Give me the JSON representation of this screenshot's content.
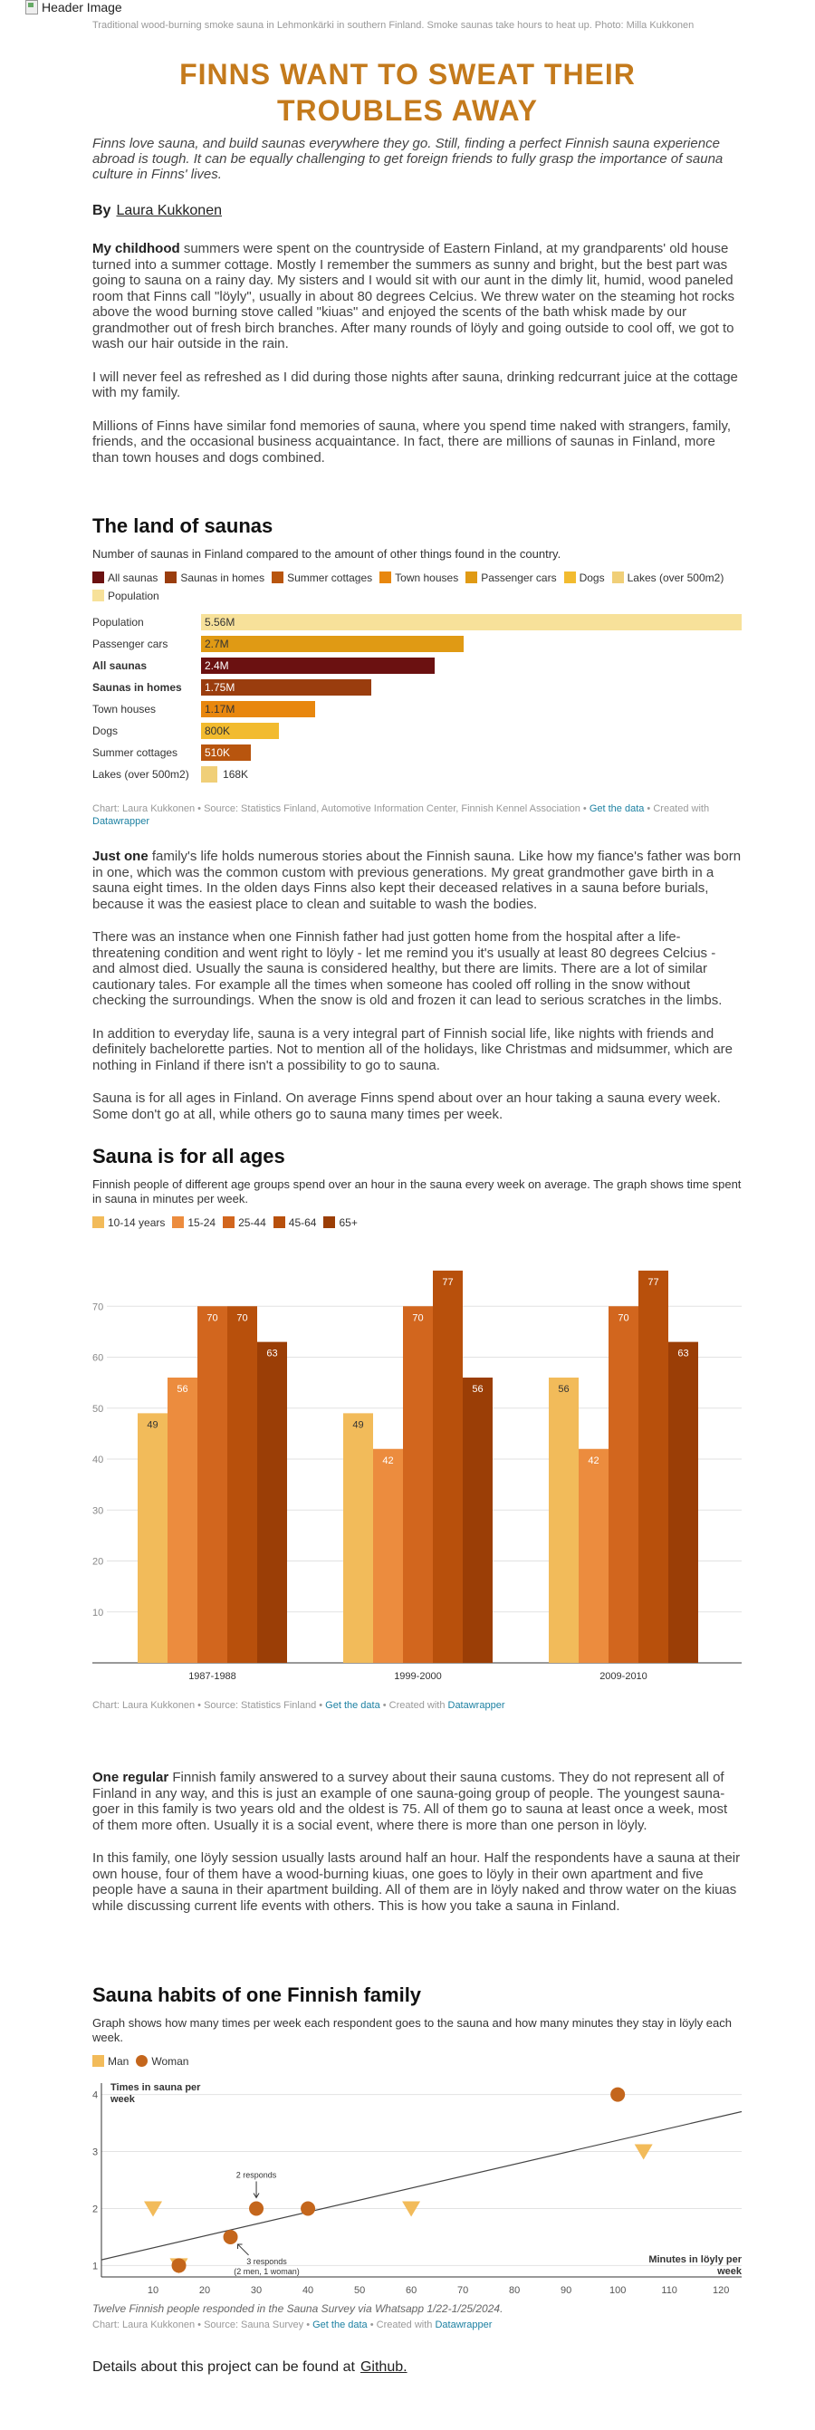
{
  "header": {
    "image_alt": "Header Image",
    "caption": "Traditional wood-burning smoke sauna in Lehmonkärki in southern Finland. Smoke saunas take hours to heat up. Photo: Milla Kukkonen"
  },
  "article": {
    "title": "Finns want to sweat their troubles away",
    "lede": "Finns love sauna, and build saunas everywhere they go. Still, finding a perfect Finnish sauna experience abroad is tough. It can be equally challenging to get foreign friends to fully grasp the importance of sauna culture in Finns' lives.",
    "by_label": "By",
    "author": "Laura Kukkonen",
    "section1": [
      {
        "lead": "My childhood",
        "text": " summers were spent on the countryside of Eastern Finland, at my grandparents' old house turned into a summer cottage. Mostly I remember the summers as sunny and bright, but the best part was going to sauna on a rainy day. My sisters and I would sit with our aunt in the dimly lit, humid, wood paneled room that Finns call \"löyly\", usually in about 80 degrees Celcius. We threw water on the steaming hot rocks above the wood burning stove called \"kiuas\" and enjoyed the scents of the bath whisk made by our grandmother out of fresh birch branches. After many rounds of löyly and going outside to cool off, we got to wash our hair outside in the rain."
      },
      {
        "lead": "",
        "text": "I will never feel as refreshed as I did during those nights after sauna, drinking redcurrant juice at the cottage with my family."
      },
      {
        "lead": "",
        "text": "Millions of Finns have similar fond memories of sauna, where you spend time naked with strangers, family, friends, and the occasional business acquaintance. In fact, there are millions of saunas in Finland, more than town houses and dogs combined."
      }
    ],
    "section2": [
      {
        "lead": "Just one",
        "text": " family's life holds numerous stories about the Finnish sauna. Like how my fiance's father was born in one, which was the common custom with previous generations. My great grandmother gave birth in a sauna eight times. In the olden days Finns also kept their deceased relatives in a sauna before burials, because it was the easiest place to clean and suitable to wash the bodies."
      },
      {
        "lead": "",
        "text": "There was an instance when one Finnish father had just gotten home from the hospital after a life-threatening condition and went right to löyly - let me remind you it's usually at least 80 degrees Celcius - and almost died. Usually the sauna is considered healthy, but there are limits. There are a lot of similar cautionary tales. For example all the times when someone has cooled off rolling in the snow without checking the surroundings. When the snow is old and frozen it can lead to serious scratches in the limbs."
      },
      {
        "lead": "",
        "text": "In addition to everyday life, sauna is a very integral part of Finnish social life, like nights with friends and definitely bachelorette parties. Not to mention all of the holidays, like Christmas and midsummer, which are nothing in Finland if there isn't a possibility to go to sauna."
      },
      {
        "lead": "",
        "text": "Sauna is for all ages in Finland. On average Finns spend about over an hour taking a sauna every week. Some don't go at all, while others go to sauna many times per week."
      }
    ],
    "section3": [
      {
        "lead": "One regular",
        "text": " Finnish family answered to a survey about their sauna customs. They do not represent all of Finland in any way, and this is just an example of one sauna-going group of people. The youngest sauna-goer in this family is two years old and the oldest is 75. All of them go to sauna at least once a week, most of them more often. Usually it is a social event, where there is more than one person in löyly."
      },
      {
        "lead": "",
        "text": "In this family, one löyly session usually lasts around half an hour. Half the respondents have a sauna at their own house, four of them have a wood-burning kiuas, one goes to löyly in their own apartment and five people have a sauna in their apartment building. All of them are in löyly naked and throw water on the kiuas while discussing current life events with others. This is how you take a sauna in Finland."
      }
    ],
    "footer": {
      "text": "Details about this project can be found at",
      "link": "Github."
    }
  },
  "chart_data": [
    {
      "type": "bar",
      "orientation": "horizontal",
      "title": "The land of saunas",
      "subtitle": "Number of saunas in Finland compared to the amount of other things found in the country.",
      "legend": [
        "All saunas",
        "Saunas in homes",
        "Summer cottages",
        "Town houses",
        "Passenger cars",
        "Dogs",
        "Lakes (over 500m2)",
        "Population"
      ],
      "colors": {
        "All saunas": "#6b1111",
        "Saunas in homes": "#9a3d0e",
        "Summer cottages": "#b8550e",
        "Town houses": "#e8870e",
        "Passenger cars": "#e09a14",
        "Dogs": "#f2bb2f",
        "Lakes (over 500m2)": "#f0cf78",
        "Population": "#f7e19a"
      },
      "categories": [
        "Population",
        "Passenger cars",
        "All saunas",
        "Saunas in homes",
        "Town houses",
        "Dogs",
        "Summer cottages",
        "Lakes (over 500m2)"
      ],
      "bold_categories": [
        "All saunas",
        "Saunas in homes"
      ],
      "values": [
        5560000,
        2700000,
        2400000,
        1750000,
        1170000,
        800000,
        510000,
        168000
      ],
      "value_labels": [
        "5.56M",
        "2.7M",
        "2.4M",
        "1.75M",
        "1.17M",
        "800K",
        "510K",
        "168K"
      ],
      "credit": {
        "text": "Chart: Laura Kukkonen • Source: Statistics Finland, Automotive Information Center, Finnish Kennel Association • ",
        "link1": "Get the data",
        "mid": " • Created with ",
        "link2": "Datawrapper"
      }
    },
    {
      "type": "bar",
      "title": "Sauna is for all ages",
      "subtitle": "Finnish people of different age groups spend over an hour in the sauna every week on average. The graph shows time spent in sauna in minutes per week.",
      "categories": [
        "1987-1988",
        "1999-2000",
        "2009-2010"
      ],
      "series": [
        {
          "name": "10-14 years",
          "color": "#f2bb5a",
          "values": [
            49,
            49,
            56
          ]
        },
        {
          "name": "15-24",
          "color": "#ec8c3e",
          "values": [
            56,
            42,
            42
          ]
        },
        {
          "name": "25-44",
          "color": "#d2661e",
          "values": [
            70,
            70,
            70
          ]
        },
        {
          "name": "45-64",
          "color": "#b8500c",
          "values": [
            70,
            77,
            77
          ]
        },
        {
          "name": "65+",
          "color": "#9b3e06",
          "values": [
            63,
            56,
            63
          ]
        }
      ],
      "yticks": [
        10,
        20,
        30,
        40,
        50,
        60,
        70
      ],
      "ylim": [
        0,
        80
      ],
      "grid": true,
      "credit": {
        "text": "Chart: Laura Kukkonen • Source: Statistics Finland • ",
        "link1": "Get the data",
        "mid": " • Created with ",
        "link2": "Datawrapper"
      }
    },
    {
      "type": "scatter",
      "title": "Sauna habits of one Finnish family",
      "subtitle": "Graph shows how many times per week each respondent goes to the sauna and how many minutes they stay in löyly each week.",
      "ylabel": "Times in sauna per week",
      "xlabel": "Minutes in löyly per week",
      "xticks": [
        10,
        20,
        30,
        40,
        50,
        60,
        70,
        80,
        90,
        100,
        110,
        120
      ],
      "yticks": [
        1,
        2,
        3,
        4
      ],
      "xlim": [
        0,
        124
      ],
      "ylim": [
        0.8,
        4.2
      ],
      "series": [
        {
          "name": "Man",
          "color": "#f2bb5a",
          "marker": "triangle-down",
          "points": [
            {
              "x": 10,
              "y": 2
            },
            {
              "x": 15,
              "y": 1
            },
            {
              "x": 60,
              "y": 2
            },
            {
              "x": 105,
              "y": 3
            }
          ]
        },
        {
          "name": "Woman",
          "color": "#c4661c",
          "marker": "circle",
          "points": [
            {
              "x": 15,
              "y": 1
            },
            {
              "x": 25,
              "y": 1.5
            },
            {
              "x": 30,
              "y": 2
            },
            {
              "x": 40,
              "y": 2
            },
            {
              "x": 100,
              "y": 4
            }
          ]
        }
      ],
      "trendline": {
        "from": {
          "x": 0,
          "y": 1.1
        },
        "to": {
          "x": 124,
          "y": 3.7
        }
      },
      "annotations": [
        {
          "text": "2 responds",
          "x": 30,
          "y": 2
        },
        {
          "text": "3 responds",
          "x": 25,
          "y": 1.5
        },
        {
          "text": "(2 men, 1 woman)",
          "x": 25,
          "y": 1.5
        }
      ],
      "note": "Twelve Finnish people responded in the Sauna Survey via Whatsapp 1/22-1/25/2024.",
      "credit": {
        "text": "Chart: Laura Kukkonen • Source: Sauna Survey • ",
        "link1": "Get the data",
        "mid": " • Created with ",
        "link2": "Datawrapper"
      }
    }
  ]
}
